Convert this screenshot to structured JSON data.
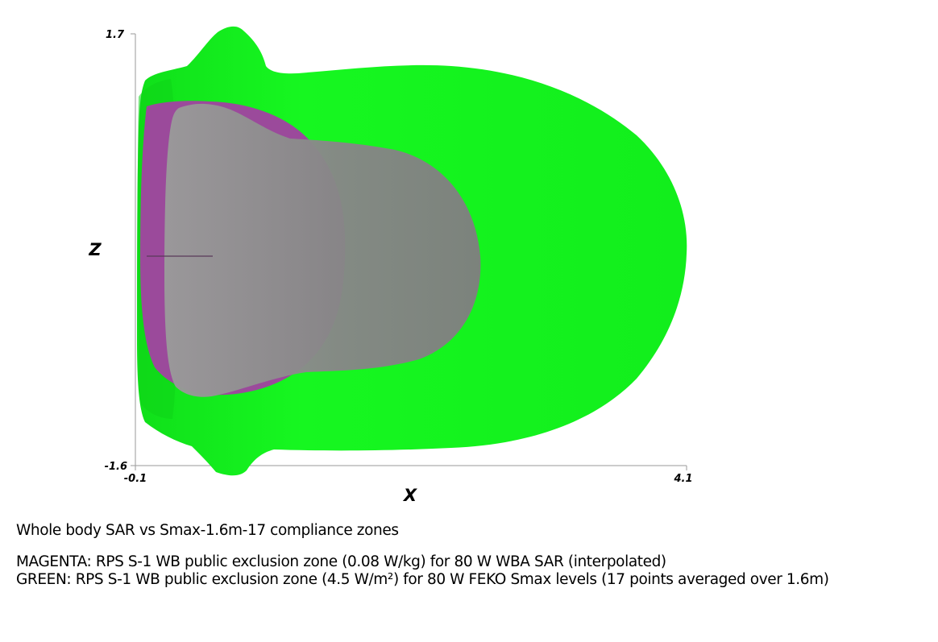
{
  "axes": {
    "x": {
      "label": "X",
      "min_label": "-0.1",
      "max_label": "4.1"
    },
    "z": {
      "label": "Z",
      "min_label": "-1.6",
      "max_label": "1.7"
    }
  },
  "colors": {
    "green_zone": "#14f51e",
    "magenta_zone": "#9b4a9b",
    "grey_overlay": "#8a8a8a",
    "axis_line": "#9a9a9a"
  },
  "caption": {
    "title": "Whole body SAR vs Smax-1.6m-17 compliance zones",
    "magenta_legend": "MAGENTA: RPS S-1 WB public exclusion zone (0.08 W/kg) for 80 W WBA SAR (interpolated)",
    "green_legend": "GREEN: RPS S-1 WB public exclusion zone (4.5 W/m²) for 80 W FEKO Smax levels (17 points averaged over 1.6m)"
  }
}
